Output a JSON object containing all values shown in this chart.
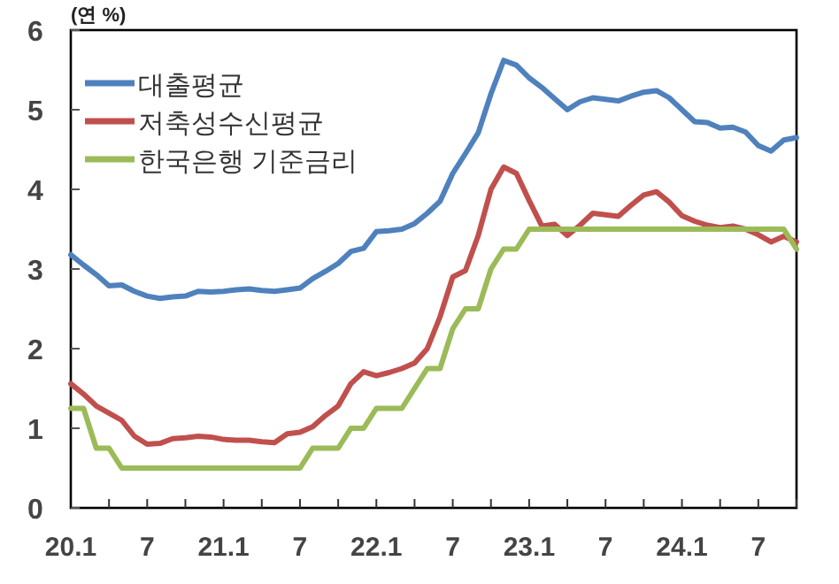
{
  "chart_data": {
    "type": "line",
    "ylabel": "(연 %)",
    "categories": [
      "20.1",
      null,
      null,
      null,
      null,
      null,
      "7",
      null,
      null,
      null,
      null,
      null,
      "21.1",
      null,
      null,
      null,
      null,
      null,
      "7",
      null,
      null,
      null,
      null,
      null,
      "22.1",
      null,
      null,
      null,
      null,
      null,
      "7",
      null,
      null,
      null,
      null,
      null,
      "23.1",
      null,
      null,
      null,
      null,
      null,
      "7",
      null,
      null,
      null,
      null,
      null,
      "24.1",
      null,
      null,
      null,
      null,
      null,
      "7",
      null,
      null,
      null
    ],
    "series": [
      {
        "name": "대출평균",
        "color": "#4f81bd",
        "values": [
          3.18,
          3.05,
          2.93,
          2.79,
          2.8,
          2.72,
          2.66,
          2.63,
          2.65,
          2.66,
          2.72,
          2.71,
          2.72,
          2.74,
          2.75,
          2.73,
          2.72,
          2.74,
          2.76,
          2.88,
          2.97,
          3.07,
          3.22,
          3.26,
          3.47,
          3.48,
          3.5,
          3.57,
          3.7,
          3.85,
          4.2,
          4.45,
          4.71,
          5.2,
          5.62,
          5.56,
          5.4,
          5.28,
          5.14,
          5.0,
          5.1,
          5.15,
          5.13,
          5.11,
          5.17,
          5.22,
          5.24,
          5.15,
          5.0,
          4.85,
          4.84,
          4.77,
          4.78,
          4.72,
          4.55,
          4.48,
          4.62,
          4.65
        ]
      },
      {
        "name": "저축성수신평균",
        "color": "#c0504d",
        "values": [
          1.56,
          1.43,
          1.28,
          1.19,
          1.1,
          0.9,
          0.8,
          0.81,
          0.87,
          0.88,
          0.9,
          0.89,
          0.86,
          0.85,
          0.85,
          0.83,
          0.82,
          0.93,
          0.95,
          1.02,
          1.16,
          1.28,
          1.56,
          1.71,
          1.66,
          1.7,
          1.75,
          1.82,
          2.0,
          2.4,
          2.9,
          2.98,
          3.42,
          4.0,
          4.28,
          4.2,
          3.86,
          3.54,
          3.56,
          3.42,
          3.55,
          3.7,
          3.68,
          3.66,
          3.8,
          3.93,
          3.97,
          3.84,
          3.67,
          3.6,
          3.55,
          3.52,
          3.54,
          3.5,
          3.43,
          3.34,
          3.41,
          3.34
        ]
      },
      {
        "name": "한국은행 기준금리",
        "color": "#9bbb59",
        "values": [
          1.25,
          1.25,
          0.75,
          0.75,
          0.5,
          0.5,
          0.5,
          0.5,
          0.5,
          0.5,
          0.5,
          0.5,
          0.5,
          0.5,
          0.5,
          0.5,
          0.5,
          0.5,
          0.5,
          0.75,
          0.75,
          0.75,
          1.0,
          1.0,
          1.25,
          1.25,
          1.25,
          1.5,
          1.75,
          1.75,
          2.25,
          2.5,
          2.5,
          3.0,
          3.25,
          3.25,
          3.5,
          3.5,
          3.5,
          3.5,
          3.5,
          3.5,
          3.5,
          3.5,
          3.5,
          3.5,
          3.5,
          3.5,
          3.5,
          3.5,
          3.5,
          3.5,
          3.5,
          3.5,
          3.5,
          3.5,
          3.5,
          3.25
        ]
      }
    ],
    "ylim": [
      0,
      6
    ],
    "yticks": [
      0,
      1,
      2,
      3,
      4,
      5,
      6
    ],
    "grid": false,
    "legend": "top left",
    "marker": "none",
    "line_style": "solid"
  }
}
